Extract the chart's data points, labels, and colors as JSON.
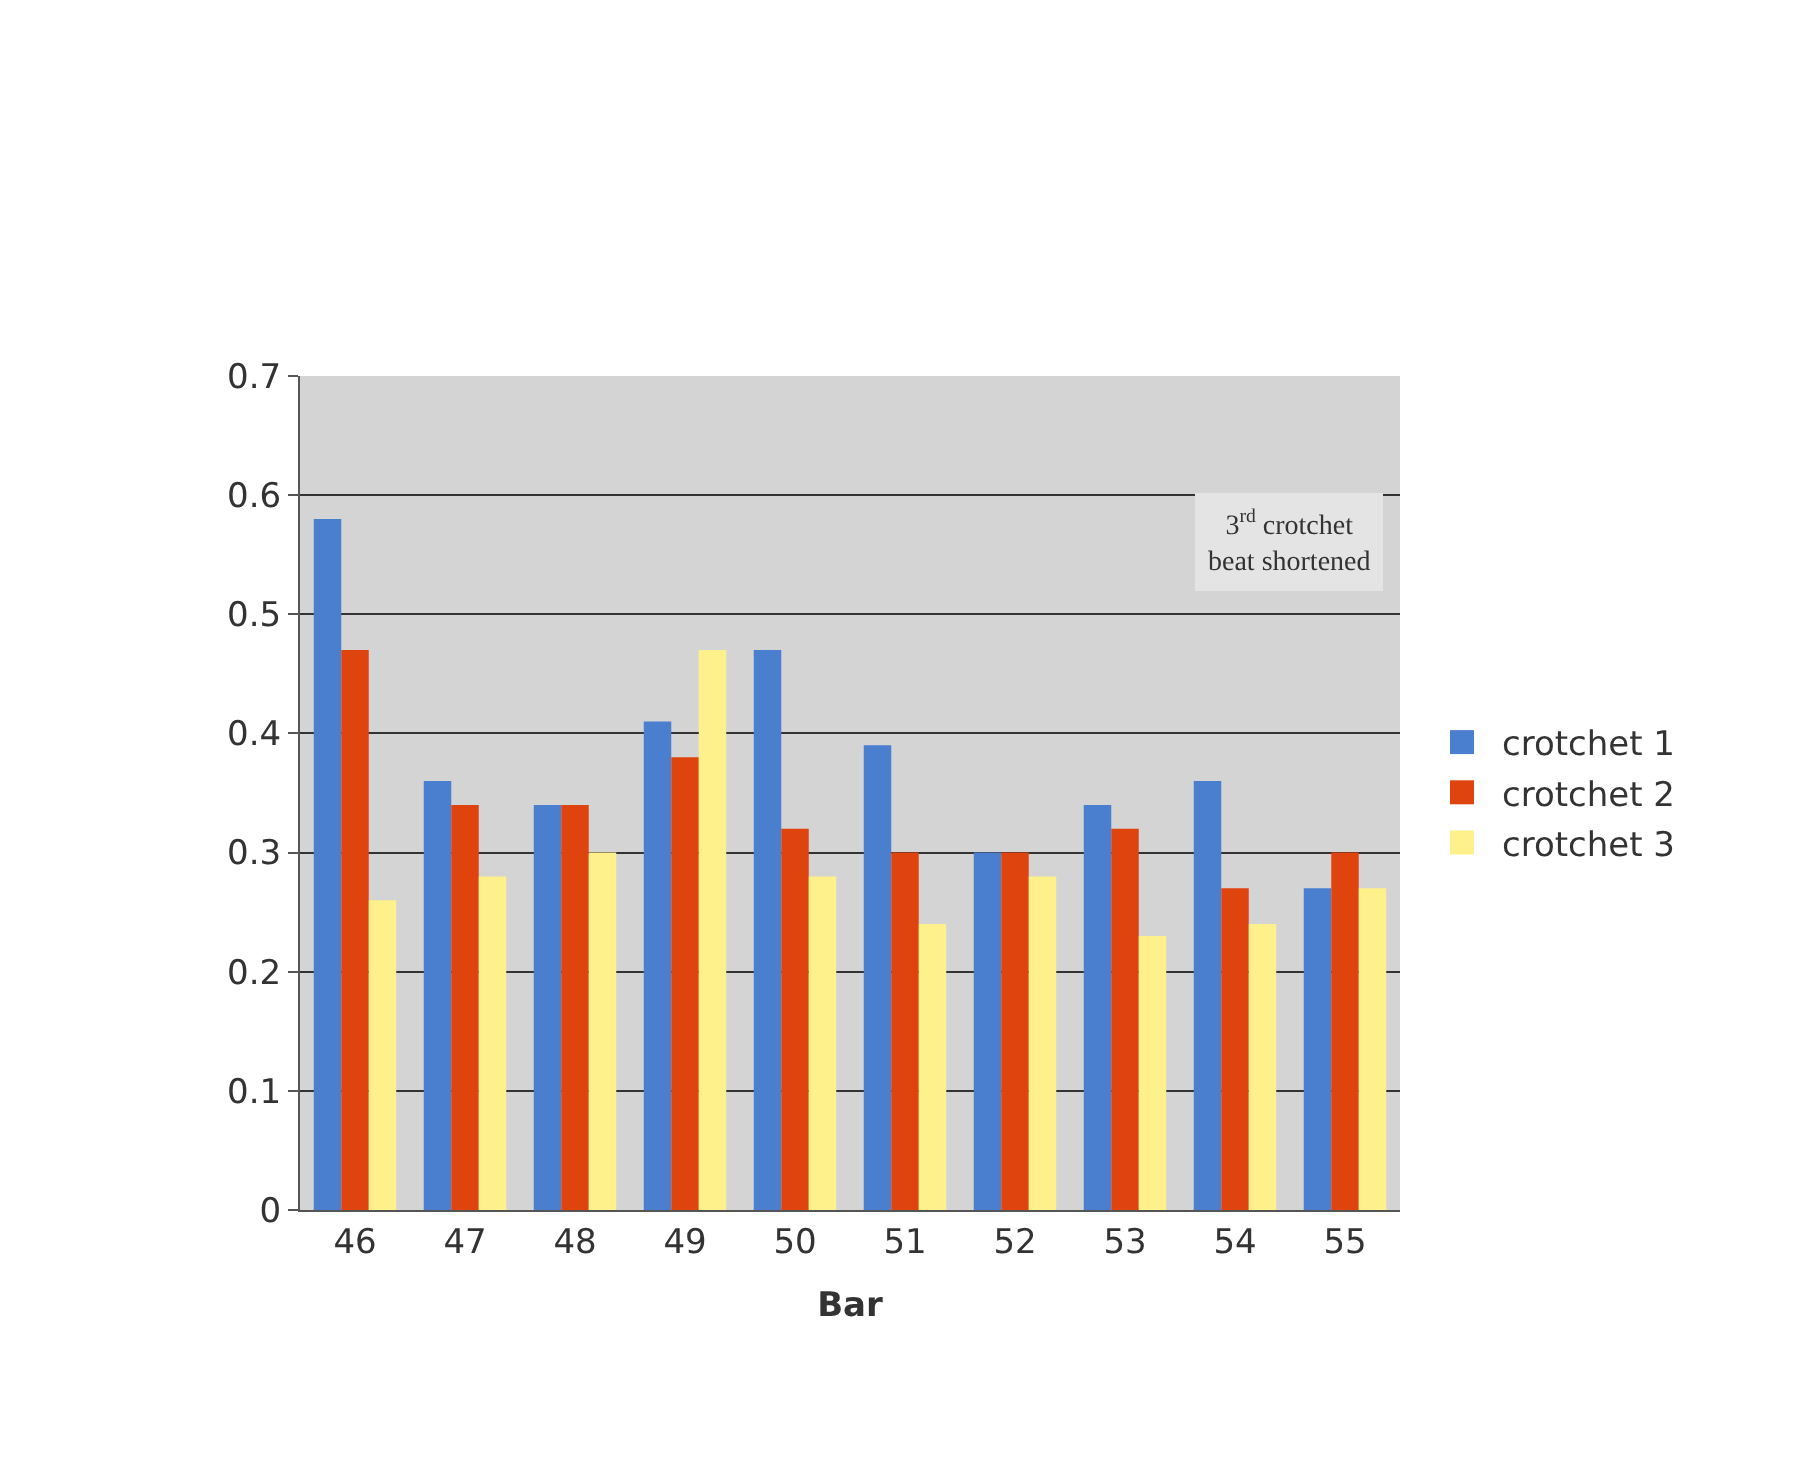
{
  "chart_data": {
    "type": "bar",
    "xlabel": "Bar",
    "categories": [
      "46",
      "47",
      "48",
      "49",
      "50",
      "51",
      "52",
      "53",
      "54",
      "55"
    ],
    "series": [
      {
        "name": "crotchet 1",
        "color": "#4a7fd0",
        "values": [
          0.58,
          0.36,
          0.34,
          0.41,
          0.47,
          0.39,
          0.3,
          0.34,
          0.36,
          0.27
        ]
      },
      {
        "name": "crotchet 2",
        "color": "#e0440e",
        "values": [
          0.47,
          0.34,
          0.34,
          0.38,
          0.32,
          0.3,
          0.3,
          0.32,
          0.27,
          0.3
        ]
      },
      {
        "name": "crotchet 3",
        "color": "#fef08a",
        "values": [
          0.26,
          0.28,
          0.3,
          0.47,
          0.28,
          0.24,
          0.28,
          0.23,
          0.24,
          0.27
        ]
      }
    ],
    "ylim": [
      0,
      0.7
    ],
    "yticks": [
      0,
      0.1,
      0.2,
      0.3,
      0.4,
      0.5,
      0.6,
      0.7
    ],
    "grid": "y",
    "legend": "right",
    "annotations": [
      "3$^{rd}$ crotchet\nbeat shortened"
    ]
  }
}
